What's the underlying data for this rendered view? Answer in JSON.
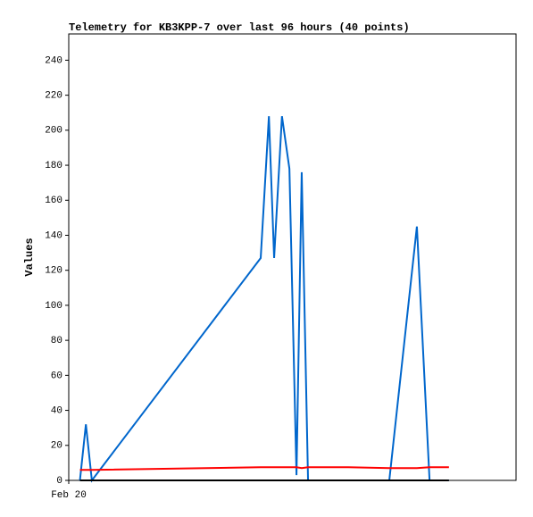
{
  "chart_data": {
    "type": "line",
    "title": "Telemetry for KB3KPP-7 over last 96 hours (40 points)",
    "y_label": "Values",
    "x": [
      3,
      4.6,
      6.2,
      51.5,
      53.7,
      55.1,
      57.2,
      59.2,
      61.1,
      62.5,
      64.2,
      75,
      86,
      93.4,
      96.8,
      102
    ],
    "series": [
      {
        "color": "#0066cc",
        "values": [
          0,
          32,
          0,
          127,
          208,
          127,
          208,
          178,
          3,
          176,
          0,
          0,
          0,
          145,
          0,
          0
        ]
      },
      {
        "color": "#ff0000",
        "values": [
          6,
          6,
          6,
          7.5,
          7.5,
          7.5,
          7.5,
          7.5,
          7.5,
          7,
          7.5,
          7.5,
          7,
          7,
          7.5,
          7.5
        ]
      },
      {
        "color": "#000000",
        "values": [
          0,
          0,
          0,
          0,
          0,
          0,
          0,
          0,
          0,
          0,
          0,
          0,
          0,
          0,
          0,
          0
        ]
      }
    ],
    "xlim": [
      0,
      120
    ],
    "xticks": [
      {
        "value": 0,
        "label": "Feb 20"
      }
    ],
    "ylim": [
      0,
      255
    ],
    "yticks": [
      0,
      20,
      40,
      60,
      80,
      100,
      120,
      140,
      160,
      180,
      200,
      220,
      240
    ],
    "grid": false
  }
}
